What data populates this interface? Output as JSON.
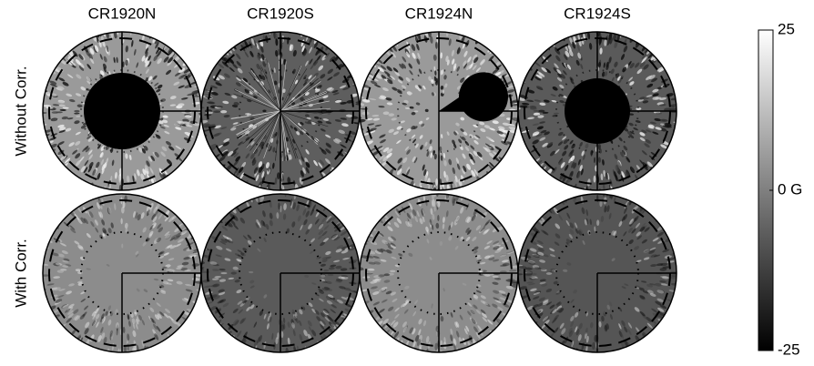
{
  "columns": [
    "CR1920N",
    "CR1920S",
    "CR1924N",
    "CR1924S"
  ],
  "rows": [
    "Without Corr.",
    "With Corr."
  ],
  "colorbar": {
    "lim": [
      -25,
      25
    ],
    "ticks": [
      25,
      {
        "value": 0,
        "label": "0 G"
      },
      -25
    ]
  }
}
